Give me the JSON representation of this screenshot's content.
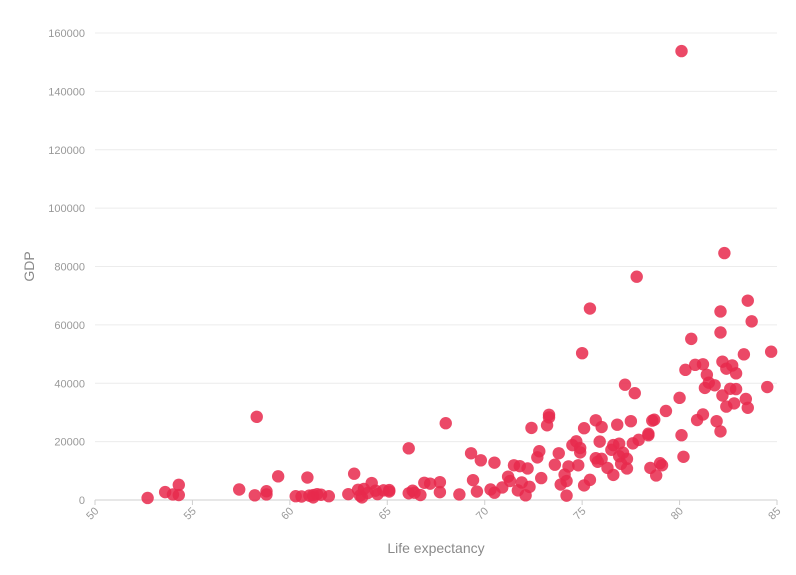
{
  "chart_data": {
    "type": "scatter",
    "xlabel": "Life expectancy",
    "ylabel": "GDP",
    "xlim": [
      50,
      85
    ],
    "ylim": [
      0,
      160000
    ],
    "x_ticks": [
      50,
      55,
      60,
      65,
      70,
      75,
      80,
      85
    ],
    "y_ticks": [
      0,
      20000,
      40000,
      60000,
      80000,
      100000,
      120000,
      140000,
      160000
    ],
    "grid": "horizontal",
    "point_color": "#e8294c",
    "point_opacity": 0.85,
    "points": [
      [
        52.7,
        700
      ],
      [
        53.6,
        2700
      ],
      [
        54.0,
        1900
      ],
      [
        54.3,
        5200
      ],
      [
        54.3,
        1700
      ],
      [
        57.4,
        3600
      ],
      [
        58.2,
        1600
      ],
      [
        58.3,
        28500
      ],
      [
        58.8,
        1900
      ],
      [
        58.8,
        3000
      ],
      [
        59.4,
        8100
      ],
      [
        60.3,
        1300
      ],
      [
        60.6,
        1200
      ],
      [
        60.9,
        7700
      ],
      [
        61.0,
        1500
      ],
      [
        61.2,
        1700
      ],
      [
        61.2,
        900
      ],
      [
        61.4,
        2000
      ],
      [
        61.6,
        1800
      ],
      [
        62.0,
        1300
      ],
      [
        63.0,
        2000
      ],
      [
        63.3,
        9000
      ],
      [
        63.5,
        3500
      ],
      [
        63.6,
        1500
      ],
      [
        63.7,
        900
      ],
      [
        63.8,
        3800
      ],
      [
        64.0,
        2400
      ],
      [
        64.2,
        5800
      ],
      [
        64.4,
        3200
      ],
      [
        64.5,
        2000
      ],
      [
        64.8,
        3300
      ],
      [
        65.1,
        2900
      ],
      [
        65.1,
        3400
      ],
      [
        66.1,
        17700
      ],
      [
        66.1,
        2300
      ],
      [
        66.3,
        3200
      ],
      [
        66.4,
        2500
      ],
      [
        66.7,
        1700
      ],
      [
        66.9,
        5900
      ],
      [
        67.2,
        5600
      ],
      [
        67.7,
        2700
      ],
      [
        67.7,
        6100
      ],
      [
        68.0,
        26300
      ],
      [
        68.7,
        1900
      ],
      [
        69.3,
        16000
      ],
      [
        69.4,
        6800
      ],
      [
        69.6,
        2900
      ],
      [
        69.8,
        13600
      ],
      [
        70.3,
        3600
      ],
      [
        70.5,
        12800
      ],
      [
        70.5,
        2500
      ],
      [
        70.9,
        4300
      ],
      [
        71.2,
        8000
      ],
      [
        71.3,
        6500
      ],
      [
        71.5,
        11900
      ],
      [
        71.7,
        3300
      ],
      [
        71.8,
        11600
      ],
      [
        71.9,
        6000
      ],
      [
        72.1,
        1600
      ],
      [
        72.2,
        10800
      ],
      [
        72.3,
        4500
      ],
      [
        72.4,
        24700
      ],
      [
        72.7,
        14600
      ],
      [
        72.8,
        16700
      ],
      [
        72.9,
        7500
      ],
      [
        73.2,
        25600
      ],
      [
        73.3,
        29200
      ],
      [
        73.3,
        28300
      ],
      [
        73.6,
        12100
      ],
      [
        73.8,
        16000
      ],
      [
        73.9,
        5300
      ],
      [
        74.1,
        8700
      ],
      [
        74.2,
        6500
      ],
      [
        74.2,
        1500
      ],
      [
        74.3,
        11500
      ],
      [
        74.5,
        18800
      ],
      [
        74.7,
        20100
      ],
      [
        74.8,
        11900
      ],
      [
        74.9,
        17800
      ],
      [
        74.9,
        16300
      ],
      [
        75.0,
        50300
      ],
      [
        75.1,
        24600
      ],
      [
        75.1,
        5000
      ],
      [
        75.4,
        65600
      ],
      [
        75.4,
        6900
      ],
      [
        75.7,
        27300
      ],
      [
        75.7,
        14300
      ],
      [
        75.8,
        13100
      ],
      [
        75.9,
        20000
      ],
      [
        76.0,
        14100
      ],
      [
        76.0,
        25000
      ],
      [
        76.3,
        11000
      ],
      [
        76.5,
        17200
      ],
      [
        76.6,
        8600
      ],
      [
        76.6,
        18800
      ],
      [
        76.8,
        25800
      ],
      [
        76.9,
        19300
      ],
      [
        76.9,
        15000
      ],
      [
        77.0,
        12400
      ],
      [
        77.1,
        16200
      ],
      [
        77.2,
        39500
      ],
      [
        77.3,
        14100
      ],
      [
        77.3,
        10800
      ],
      [
        77.5,
        27000
      ],
      [
        77.6,
        19400
      ],
      [
        77.7,
        36600
      ],
      [
        77.8,
        76500
      ],
      [
        77.9,
        20600
      ],
      [
        78.4,
        22200
      ],
      [
        78.4,
        22700
      ],
      [
        78.5,
        11000
      ],
      [
        78.6,
        27200
      ],
      [
        78.7,
        27500
      ],
      [
        78.8,
        8400
      ],
      [
        79.0,
        12600
      ],
      [
        79.1,
        11900
      ],
      [
        79.3,
        30500
      ],
      [
        80.0,
        35000
      ],
      [
        80.1,
        22200
      ],
      [
        80.1,
        153800
      ],
      [
        80.2,
        14800
      ],
      [
        80.3,
        44600
      ],
      [
        80.6,
        55200
      ],
      [
        80.8,
        46300
      ],
      [
        80.9,
        27400
      ],
      [
        81.2,
        29300
      ],
      [
        81.2,
        46500
      ],
      [
        81.3,
        38400
      ],
      [
        81.4,
        42900
      ],
      [
        81.5,
        40200
      ],
      [
        81.8,
        39300
      ],
      [
        81.9,
        27000
      ],
      [
        82.1,
        23500
      ],
      [
        82.1,
        64600
      ],
      [
        82.1,
        57400
      ],
      [
        82.2,
        47400
      ],
      [
        82.2,
        35800
      ],
      [
        82.3,
        84600
      ],
      [
        82.4,
        45000
      ],
      [
        82.4,
        32000
      ],
      [
        82.6,
        38100
      ],
      [
        82.7,
        46100
      ],
      [
        82.8,
        33100
      ],
      [
        82.9,
        43400
      ],
      [
        82.9,
        38000
      ],
      [
        83.3,
        49900
      ],
      [
        83.4,
        34600
      ],
      [
        83.5,
        68300
      ],
      [
        83.5,
        31600
      ],
      [
        83.7,
        61200
      ],
      [
        84.5,
        38700
      ],
      [
        84.7,
        50800
      ]
    ]
  }
}
